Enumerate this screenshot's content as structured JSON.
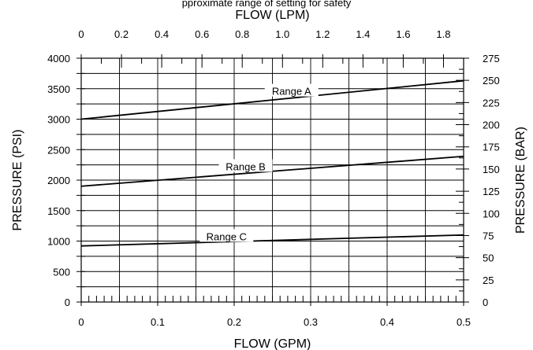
{
  "header_fragment": "pproximate range of setting for safety",
  "chart_data": {
    "type": "line",
    "xlabel": "FLOW (GPM)",
    "x2label": "FLOW (LPM)",
    "ylabel": "PRESSURE (PSI)",
    "y2label": "PRESSURE (BAR)",
    "xlim": [
      0,
      0.5
    ],
    "ylim": [
      0,
      4000
    ],
    "x2lim": [
      0,
      1.9
    ],
    "y2lim": [
      0,
      275
    ],
    "x_ticks": [
      "0",
      "0.1",
      "0.2",
      "0.3",
      "0.4",
      "0.5"
    ],
    "y_ticks": [
      "0",
      "500",
      "1000",
      "1500",
      "2000",
      "2500",
      "3000",
      "3500",
      "4000"
    ],
    "x2_ticks": [
      "0",
      "0.2",
      "0.4",
      "0.6",
      "0.8",
      "1.0",
      "1.2",
      "1.4",
      "1.6",
      "1.8"
    ],
    "y2_ticks": [
      "0",
      "25",
      "50",
      "75",
      "100",
      "125",
      "150",
      "175",
      "200",
      "225",
      "250",
      "275"
    ],
    "grid": true,
    "series": [
      {
        "name": "Range A",
        "x": [
          0,
          0.5
        ],
        "y": [
          3000,
          3630
        ]
      },
      {
        "name": "Range B",
        "x": [
          0,
          0.5
        ],
        "y": [
          1900,
          2390
        ]
      },
      {
        "name": "Range C",
        "x": [
          0,
          0.5
        ],
        "y": [
          920,
          1100
        ]
      }
    ]
  }
}
